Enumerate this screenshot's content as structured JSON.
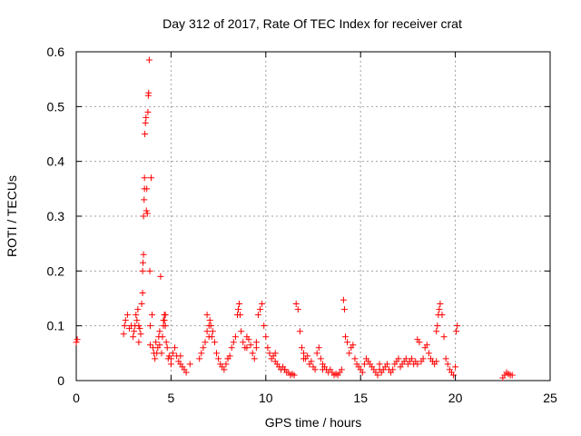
{
  "chart_data": {
    "type": "scatter",
    "title": "Day 312 of 2017, Rate Of TEC Index for receiver crat",
    "xlabel": "GPS time / hours",
    "ylabel": "ROTI / TECUs",
    "xlim": [
      0,
      25
    ],
    "ylim": [
      0,
      0.6
    ],
    "xticks": [
      0,
      5,
      10,
      15,
      20,
      25
    ],
    "xtick_labels": [
      "0",
      "5",
      "10",
      "15",
      "20",
      "25"
    ],
    "yticks": [
      0,
      0.1,
      0.2,
      0.3,
      0.4,
      0.5,
      0.6
    ],
    "ytick_labels": [
      "0",
      "0.1",
      "0.2",
      "0.3",
      "0.4",
      "0.5",
      "0.6"
    ],
    "grid": true,
    "marker": "+",
    "color": "#ff0000",
    "series": [
      {
        "name": "ROTI",
        "x": [
          0.0,
          0.05,
          2.5,
          2.55,
          2.6,
          2.7,
          2.8,
          2.9,
          3.0,
          3.05,
          3.1,
          3.15,
          3.2,
          3.25,
          3.3,
          3.35,
          3.4,
          3.45,
          3.5,
          3.5,
          3.52,
          3.55,
          3.55,
          3.58,
          3.6,
          3.6,
          3.62,
          3.65,
          3.68,
          3.7,
          3.72,
          3.75,
          3.78,
          3.8,
          3.82,
          3.85,
          3.88,
          3.9,
          3.95,
          4.0,
          4.05,
          4.1,
          4.15,
          4.2,
          4.25,
          4.3,
          4.35,
          4.4,
          4.45,
          4.5,
          4.55,
          4.6,
          4.65,
          4.7,
          4.75,
          4.8,
          4.85,
          4.9,
          5.0,
          5.1,
          5.2,
          5.3,
          5.4,
          5.5,
          5.6,
          5.7,
          5.8,
          6.5,
          6.6,
          6.7,
          6.8,
          6.9,
          7.0,
          7.05,
          7.1,
          7.15,
          7.2,
          7.3,
          7.4,
          7.5,
          7.6,
          7.7,
          7.8,
          7.9,
          8.0,
          8.1,
          8.2,
          8.3,
          8.4,
          8.5,
          8.55,
          8.6,
          8.65,
          8.7,
          8.8,
          8.9,
          9.0,
          9.1,
          9.2,
          9.3,
          9.4,
          9.5,
          9.6,
          9.7,
          9.8,
          9.9,
          10.0,
          10.1,
          10.2,
          10.3,
          10.4,
          10.5,
          10.6,
          10.7,
          10.8,
          10.9,
          11.0,
          11.1,
          11.2,
          11.3,
          11.4,
          11.5,
          11.6,
          11.7,
          11.8,
          11.9,
          12.0,
          12.1,
          12.2,
          12.3,
          12.4,
          12.5,
          12.6,
          12.7,
          12.8,
          12.9,
          13.0,
          13.1,
          13.2,
          13.3,
          13.4,
          13.5,
          13.6,
          13.7,
          13.8,
          13.9,
          14.0,
          14.1,
          14.15,
          14.2,
          14.3,
          14.4,
          14.5,
          14.6,
          14.7,
          14.8,
          14.9,
          15.0,
          15.1,
          15.2,
          15.3,
          15.4,
          15.5,
          15.6,
          15.7,
          15.8,
          15.9,
          16.0,
          16.1,
          16.2,
          16.3,
          16.4,
          16.5,
          16.6,
          16.7,
          16.8,
          16.9,
          17.0,
          17.1,
          17.2,
          17.3,
          17.4,
          17.5,
          17.6,
          17.7,
          17.8,
          17.9,
          18.0,
          18.1,
          18.2,
          18.3,
          18.4,
          18.5,
          18.6,
          18.7,
          18.8,
          18.9,
          19.0,
          19.05,
          19.1,
          19.15,
          19.2,
          19.3,
          19.4,
          19.5,
          19.6,
          19.7,
          19.8,
          19.9,
          20.0,
          20.05,
          20.1,
          22.5,
          22.6,
          22.7,
          22.8,
          22.9,
          23.0,
          4.6,
          4.65,
          4.7,
          6.9,
          7.0,
          3.3,
          3.9,
          4.4,
          5.0,
          5.5,
          6.0,
          8.0,
          9.0,
          9.5,
          10.5,
          11.0,
          12.0,
          13.0,
          16.0,
          18.0,
          19.0
        ],
        "y": [
          0.07,
          0.075,
          0.085,
          0.1,
          0.11,
          0.12,
          0.095,
          0.1,
          0.08,
          0.09,
          0.1,
          0.12,
          0.11,
          0.13,
          0.1,
          0.095,
          0.085,
          0.14,
          0.16,
          0.2,
          0.215,
          0.23,
          0.3,
          0.33,
          0.35,
          0.37,
          0.45,
          0.47,
          0.48,
          0.31,
          0.35,
          0.305,
          0.49,
          0.52,
          0.525,
          0.585,
          0.2,
          0.1,
          0.37,
          0.12,
          0.06,
          0.05,
          0.04,
          0.07,
          0.05,
          0.06,
          0.08,
          0.065,
          0.19,
          0.05,
          0.08,
          0.1,
          0.11,
          0.12,
          0.07,
          0.06,
          0.04,
          0.045,
          0.03,
          0.05,
          0.06,
          0.045,
          0.035,
          0.03,
          0.025,
          0.02,
          0.015,
          0.04,
          0.05,
          0.06,
          0.07,
          0.09,
          0.1,
          0.11,
          0.1,
          0.08,
          0.09,
          0.07,
          0.05,
          0.04,
          0.03,
          0.025,
          0.02,
          0.03,
          0.04,
          0.045,
          0.06,
          0.07,
          0.08,
          0.12,
          0.13,
          0.14,
          0.12,
          0.09,
          0.07,
          0.06,
          0.08,
          0.075,
          0.065,
          0.05,
          0.04,
          0.06,
          0.12,
          0.13,
          0.14,
          0.1,
          0.08,
          0.06,
          0.05,
          0.04,
          0.045,
          0.035,
          0.03,
          0.025,
          0.02,
          0.025,
          0.02,
          0.015,
          0.015,
          0.01,
          0.012,
          0.01,
          0.14,
          0.13,
          0.09,
          0.06,
          0.05,
          0.04,
          0.045,
          0.03,
          0.035,
          0.025,
          0.02,
          0.05,
          0.06,
          0.04,
          0.03,
          0.025,
          0.02,
          0.015,
          0.02,
          0.015,
          0.01,
          0.012,
          0.01,
          0.015,
          0.02,
          0.147,
          0.13,
          0.08,
          0.07,
          0.05,
          0.06,
          0.065,
          0.04,
          0.03,
          0.025,
          0.02,
          0.015,
          0.03,
          0.04,
          0.035,
          0.03,
          0.025,
          0.02,
          0.015,
          0.01,
          0.02,
          0.015,
          0.02,
          0.025,
          0.03,
          0.02,
          0.015,
          0.02,
          0.03,
          0.035,
          0.04,
          0.025,
          0.03,
          0.035,
          0.04,
          0.03,
          0.035,
          0.04,
          0.03,
          0.035,
          0.075,
          0.07,
          0.035,
          0.04,
          0.06,
          0.065,
          0.05,
          0.04,
          0.035,
          0.03,
          0.09,
          0.1,
          0.12,
          0.13,
          0.14,
          0.12,
          0.08,
          0.04,
          0.03,
          0.02,
          0.015,
          0.01,
          0.025,
          0.09,
          0.1,
          0.005,
          0.01,
          0.015,
          0.012,
          0.01,
          0.01,
          0.11,
          0.12,
          0.1,
          0.12,
          0.08,
          0.07,
          0.065,
          0.09,
          0.04,
          0.045,
          0.03,
          0.04,
          0.06,
          0.07,
          0.05,
          0.02,
          0.04,
          0.02,
          0.03,
          0.03,
          0.035
        ]
      }
    ]
  }
}
